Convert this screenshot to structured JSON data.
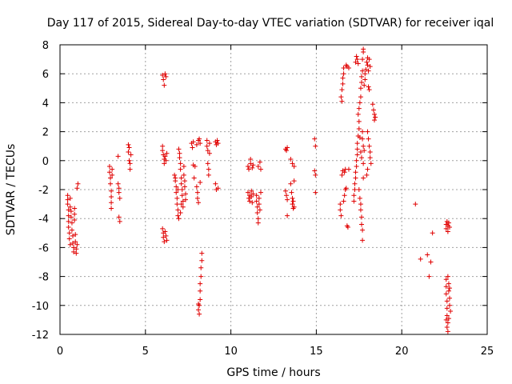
{
  "chart_data": {
    "type": "scatter",
    "title": "Day 117 of 2015, Sidereal Day-to-day VTEC variation (SDTVAR) for receiver iqal",
    "xlabel": "GPS time / hours",
    "ylabel": "SDTVAR / TECUs",
    "xlim": [
      0,
      25
    ],
    "ylim": [
      -12,
      8
    ],
    "xticks": [
      0,
      5,
      10,
      15,
      20,
      25
    ],
    "yticks": [
      -12,
      -10,
      -8,
      -6,
      -4,
      -2,
      0,
      2,
      4,
      6,
      8
    ],
    "grid": true,
    "marker": "+",
    "color": "#e00000",
    "series": [
      {
        "name": "SDTVAR",
        "points": [
          [
            0.45,
            -2.4
          ],
          [
            0.45,
            -2.7
          ],
          [
            0.45,
            -3.0
          ],
          [
            0.5,
            -3.4
          ],
          [
            0.5,
            -3.8
          ],
          [
            0.5,
            -4.2
          ],
          [
            0.5,
            -4.6
          ],
          [
            0.55,
            -5.0
          ],
          [
            0.55,
            -5.4
          ],
          [
            0.6,
            -5.8
          ],
          [
            0.6,
            -2.6
          ],
          [
            0.6,
            -3.2
          ],
          [
            0.65,
            -3.5
          ],
          [
            0.65,
            -3.9
          ],
          [
            0.7,
            -4.3
          ],
          [
            0.7,
            -4.8
          ],
          [
            0.75,
            -5.2
          ],
          [
            0.75,
            -5.7
          ],
          [
            0.8,
            -6.0
          ],
          [
            0.8,
            -6.3
          ],
          [
            0.85,
            -3.3
          ],
          [
            0.85,
            -3.7
          ],
          [
            0.85,
            -4.1
          ],
          [
            0.9,
            -5.1
          ],
          [
            0.9,
            -5.6
          ],
          [
            0.95,
            -6.1
          ],
          [
            0.95,
            -6.4
          ],
          [
            1.0,
            -5.8
          ],
          [
            1.0,
            -1.9
          ],
          [
            1.05,
            -1.6
          ],
          [
            2.9,
            -0.4
          ],
          [
            2.9,
            -0.8
          ],
          [
            2.95,
            -1.2
          ],
          [
            2.95,
            -1.6
          ],
          [
            3.0,
            -2.1
          ],
          [
            3.0,
            -2.5
          ],
          [
            3.0,
            -2.9
          ],
          [
            3.0,
            -3.3
          ],
          [
            3.05,
            -0.6
          ],
          [
            3.05,
            -1.0
          ],
          [
            3.4,
            0.3
          ],
          [
            3.4,
            -1.6
          ],
          [
            3.45,
            -1.9
          ],
          [
            3.45,
            -2.2
          ],
          [
            3.45,
            -3.9
          ],
          [
            3.5,
            -4.2
          ],
          [
            3.5,
            -2.6
          ],
          [
            4.0,
            1.1
          ],
          [
            4.0,
            0.6
          ],
          [
            4.05,
            0.9
          ],
          [
            4.05,
            0.0
          ],
          [
            4.1,
            -0.2
          ],
          [
            4.1,
            -0.6
          ],
          [
            4.15,
            0.4
          ],
          [
            6.0,
            5.9
          ],
          [
            6.05,
            5.6
          ],
          [
            6.1,
            5.2
          ],
          [
            6.15,
            6.0
          ],
          [
            6.2,
            5.8
          ],
          [
            6.0,
            1.0
          ],
          [
            6.0,
            0.7
          ],
          [
            6.05,
            0.4
          ],
          [
            6.1,
            0.1
          ],
          [
            6.1,
            -0.2
          ],
          [
            6.15,
            0.3
          ],
          [
            6.2,
            0.0
          ],
          [
            6.25,
            0.5
          ],
          [
            6.0,
            -4.7
          ],
          [
            6.05,
            -5.0
          ],
          [
            6.05,
            -5.3
          ],
          [
            6.1,
            -5.6
          ],
          [
            6.15,
            -4.9
          ],
          [
            6.2,
            -5.2
          ],
          [
            6.25,
            -5.5
          ],
          [
            6.7,
            -1.0
          ],
          [
            6.75,
            -1.4
          ],
          [
            6.8,
            -1.8
          ],
          [
            6.8,
            -2.2
          ],
          [
            6.85,
            -2.6
          ],
          [
            6.85,
            -3.0
          ],
          [
            6.9,
            -3.4
          ],
          [
            6.9,
            -3.8
          ],
          [
            6.95,
            -4.0
          ],
          [
            6.95,
            0.8
          ],
          [
            7.0,
            0.5
          ],
          [
            7.0,
            0.2
          ],
          [
            7.05,
            -0.2
          ],
          [
            7.05,
            -0.6
          ],
          [
            7.1,
            -1.2
          ],
          [
            7.1,
            -1.6
          ],
          [
            7.15,
            -2.0
          ],
          [
            7.15,
            -2.4
          ],
          [
            7.2,
            -2.8
          ],
          [
            7.2,
            -3.2
          ],
          [
            7.25,
            -0.4
          ],
          [
            7.25,
            -1.0
          ],
          [
            7.3,
            -1.4
          ],
          [
            7.3,
            -1.8
          ],
          [
            7.35,
            -2.3
          ],
          [
            7.35,
            -2.7
          ],
          [
            7.05,
            -3.6
          ],
          [
            7.1,
            -3.0
          ],
          [
            6.9,
            -2.0
          ],
          [
            6.75,
            -1.2
          ],
          [
            7.7,
            1.2
          ],
          [
            7.75,
            0.9
          ],
          [
            7.8,
            -0.3
          ],
          [
            7.85,
            -1.2
          ],
          [
            7.8,
            1.3
          ],
          [
            7.9,
            -0.4
          ],
          [
            8.0,
            1.1
          ],
          [
            8.0,
            -1.8
          ],
          [
            8.05,
            -2.2
          ],
          [
            8.05,
            -2.6
          ],
          [
            8.1,
            -2.9
          ],
          [
            8.1,
            1.4
          ],
          [
            8.15,
            1.5
          ],
          [
            8.2,
            1.2
          ],
          [
            8.2,
            -1.5
          ],
          [
            8.1,
            -9.9
          ],
          [
            8.1,
            -10.3
          ],
          [
            8.15,
            -10.6
          ],
          [
            8.15,
            -10.0
          ],
          [
            8.2,
            -9.0
          ],
          [
            8.2,
            -8.5
          ],
          [
            8.25,
            -8.0
          ],
          [
            8.25,
            -7.4
          ],
          [
            8.3,
            -6.9
          ],
          [
            8.3,
            -6.4
          ],
          [
            8.2,
            -9.6
          ],
          [
            8.6,
            1.4
          ],
          [
            8.6,
            1.0
          ],
          [
            8.65,
            0.7
          ],
          [
            8.65,
            -0.2
          ],
          [
            8.7,
            -0.6
          ],
          [
            8.7,
            -1.0
          ],
          [
            8.75,
            0.5
          ],
          [
            8.75,
            1.2
          ],
          [
            9.1,
            1.3
          ],
          [
            9.1,
            -1.6
          ],
          [
            9.15,
            -2.0
          ],
          [
            9.15,
            1.1
          ],
          [
            9.2,
            1.4
          ],
          [
            9.25,
            1.2
          ],
          [
            9.25,
            -1.9
          ],
          [
            11.0,
            -0.4
          ],
          [
            11.0,
            -2.2
          ],
          [
            11.05,
            -2.6
          ],
          [
            11.05,
            -0.6
          ],
          [
            11.1,
            -2.4
          ],
          [
            11.1,
            -2.8
          ],
          [
            11.15,
            -0.2
          ],
          [
            11.15,
            0.1
          ],
          [
            11.2,
            -2.1
          ],
          [
            11.2,
            -2.5
          ],
          [
            11.25,
            -0.5
          ],
          [
            11.25,
            -2.9
          ],
          [
            11.3,
            -2.3
          ],
          [
            11.3,
            -0.3
          ],
          [
            11.5,
            -2.4
          ],
          [
            11.5,
            -2.8
          ],
          [
            11.55,
            -3.2
          ],
          [
            11.55,
            -3.6
          ],
          [
            11.6,
            -4.0
          ],
          [
            11.6,
            -4.3
          ],
          [
            11.6,
            -0.4
          ],
          [
            11.65,
            -2.6
          ],
          [
            11.65,
            -3.0
          ],
          [
            11.7,
            -3.4
          ],
          [
            11.7,
            -0.1
          ],
          [
            11.75,
            -2.2
          ],
          [
            11.75,
            -0.6
          ],
          [
            13.2,
            0.8
          ],
          [
            13.25,
            0.7
          ],
          [
            13.3,
            0.9
          ],
          [
            13.2,
            -2.1
          ],
          [
            13.25,
            -2.4
          ],
          [
            13.3,
            -2.7
          ],
          [
            13.3,
            -3.8
          ],
          [
            13.5,
            -1.6
          ],
          [
            13.55,
            -2.2
          ],
          [
            13.6,
            -2.6
          ],
          [
            13.6,
            -3.0
          ],
          [
            13.65,
            -2.8
          ],
          [
            13.65,
            -3.3
          ],
          [
            13.7,
            -3.2
          ],
          [
            13.7,
            -1.4
          ],
          [
            13.5,
            0.1
          ],
          [
            13.6,
            -0.2
          ],
          [
            13.7,
            -0.4
          ],
          [
            14.9,
            1.5
          ],
          [
            14.95,
            1.0
          ],
          [
            14.9,
            -0.7
          ],
          [
            14.95,
            -1.0
          ],
          [
            14.95,
            -2.2
          ],
          [
            16.4,
            -3.0
          ],
          [
            16.4,
            -3.4
          ],
          [
            16.45,
            -3.8
          ],
          [
            16.45,
            4.4
          ],
          [
            16.5,
            4.1
          ],
          [
            16.5,
            4.9
          ],
          [
            16.55,
            5.3
          ],
          [
            16.55,
            5.7
          ],
          [
            16.6,
            6.0
          ],
          [
            16.6,
            6.4
          ],
          [
            16.5,
            -1.0
          ],
          [
            16.55,
            -0.7
          ],
          [
            16.6,
            -2.8
          ],
          [
            16.65,
            -2.4
          ],
          [
            16.65,
            -0.8
          ],
          [
            16.7,
            -2.0
          ],
          [
            16.7,
            -0.6
          ],
          [
            16.75,
            -1.9
          ],
          [
            16.75,
            6.6
          ],
          [
            16.8,
            6.5
          ],
          [
            16.8,
            -4.5
          ],
          [
            16.85,
            -4.6
          ],
          [
            16.9,
            -0.6
          ],
          [
            16.9,
            6.4
          ],
          [
            17.2,
            -2.8
          ],
          [
            17.2,
            -2.4
          ],
          [
            17.25,
            -2.0
          ],
          [
            17.25,
            -1.6
          ],
          [
            17.3,
            -1.2
          ],
          [
            17.3,
            -0.8
          ],
          [
            17.35,
            -0.4
          ],
          [
            17.35,
            0.0
          ],
          [
            17.4,
            0.4
          ],
          [
            17.4,
            0.8
          ],
          [
            17.3,
            6.8
          ],
          [
            17.35,
            7.2
          ],
          [
            17.4,
            7.0
          ],
          [
            17.45,
            6.7
          ],
          [
            17.45,
            3.2
          ],
          [
            17.5,
            2.7
          ],
          [
            17.5,
            2.2
          ],
          [
            17.55,
            1.6
          ],
          [
            17.55,
            4.0
          ],
          [
            17.6,
            4.4
          ],
          [
            17.4,
            1.2
          ],
          [
            17.45,
            1.7
          ],
          [
            17.5,
            3.6
          ],
          [
            17.6,
            5.0
          ],
          [
            17.65,
            5.4
          ],
          [
            17.65,
            5.8
          ],
          [
            17.7,
            6.2
          ],
          [
            17.7,
            7.0
          ],
          [
            17.75,
            7.5
          ],
          [
            17.75,
            7.7
          ],
          [
            17.5,
            -2.0
          ],
          [
            17.55,
            -2.6
          ],
          [
            17.6,
            -3.0
          ],
          [
            17.6,
            -3.4
          ],
          [
            17.65,
            -3.9
          ],
          [
            17.65,
            -4.4
          ],
          [
            17.7,
            -4.8
          ],
          [
            17.7,
            -5.5
          ],
          [
            17.75,
            -1.2
          ],
          [
            17.75,
            -0.2
          ],
          [
            17.6,
            0.6
          ],
          [
            17.65,
            0.2
          ],
          [
            17.7,
            2.0
          ],
          [
            17.7,
            1.5
          ],
          [
            17.75,
            1.0
          ],
          [
            17.8,
            0.7
          ],
          [
            17.8,
            5.2
          ],
          [
            17.85,
            5.6
          ],
          [
            17.85,
            6.0
          ],
          [
            17.9,
            6.3
          ],
          [
            17.95,
            6.8
          ],
          [
            18.0,
            7.1
          ],
          [
            18.0,
            6.6
          ],
          [
            18.05,
            6.2
          ],
          [
            18.05,
            5.1
          ],
          [
            18.1,
            4.9
          ],
          [
            18.1,
            7.0
          ],
          [
            18.15,
            6.5
          ],
          [
            18.0,
            2.0
          ],
          [
            18.05,
            1.5
          ],
          [
            18.1,
            1.0
          ],
          [
            18.15,
            0.6
          ],
          [
            18.15,
            0.2
          ],
          [
            18.2,
            -0.2
          ],
          [
            18.0,
            -0.6
          ],
          [
            17.95,
            -1.0
          ],
          [
            18.3,
            3.9
          ],
          [
            18.35,
            3.5
          ],
          [
            18.4,
            3.2
          ],
          [
            18.4,
            2.8
          ],
          [
            18.45,
            3.0
          ],
          [
            20.8,
            -3.0
          ],
          [
            21.1,
            -6.8
          ],
          [
            21.5,
            -6.5
          ],
          [
            21.6,
            -8.0
          ],
          [
            21.7,
            -7.0
          ],
          [
            21.8,
            -5.0
          ],
          [
            22.6,
            -4.4
          ],
          [
            22.6,
            -4.7
          ],
          [
            22.65,
            -4.2
          ],
          [
            22.7,
            -4.5
          ],
          [
            22.7,
            -4.9
          ],
          [
            22.75,
            -4.3
          ],
          [
            22.8,
            -4.6
          ],
          [
            22.6,
            -8.2
          ],
          [
            22.6,
            -8.7
          ],
          [
            22.6,
            -9.2
          ],
          [
            22.65,
            -9.7
          ],
          [
            22.65,
            -10.2
          ],
          [
            22.65,
            -10.7
          ],
          [
            22.7,
            -11.2
          ],
          [
            22.7,
            -11.8
          ],
          [
            22.7,
            -8.0
          ],
          [
            22.75,
            -8.5
          ],
          [
            22.75,
            -9.0
          ],
          [
            22.8,
            -9.5
          ],
          [
            22.8,
            -10.0
          ],
          [
            22.85,
            -10.4
          ],
          [
            22.6,
            -11.0
          ],
          [
            22.65,
            -11.5
          ],
          [
            22.75,
            -10.9
          ],
          [
            22.8,
            -8.8
          ]
        ]
      }
    ]
  }
}
